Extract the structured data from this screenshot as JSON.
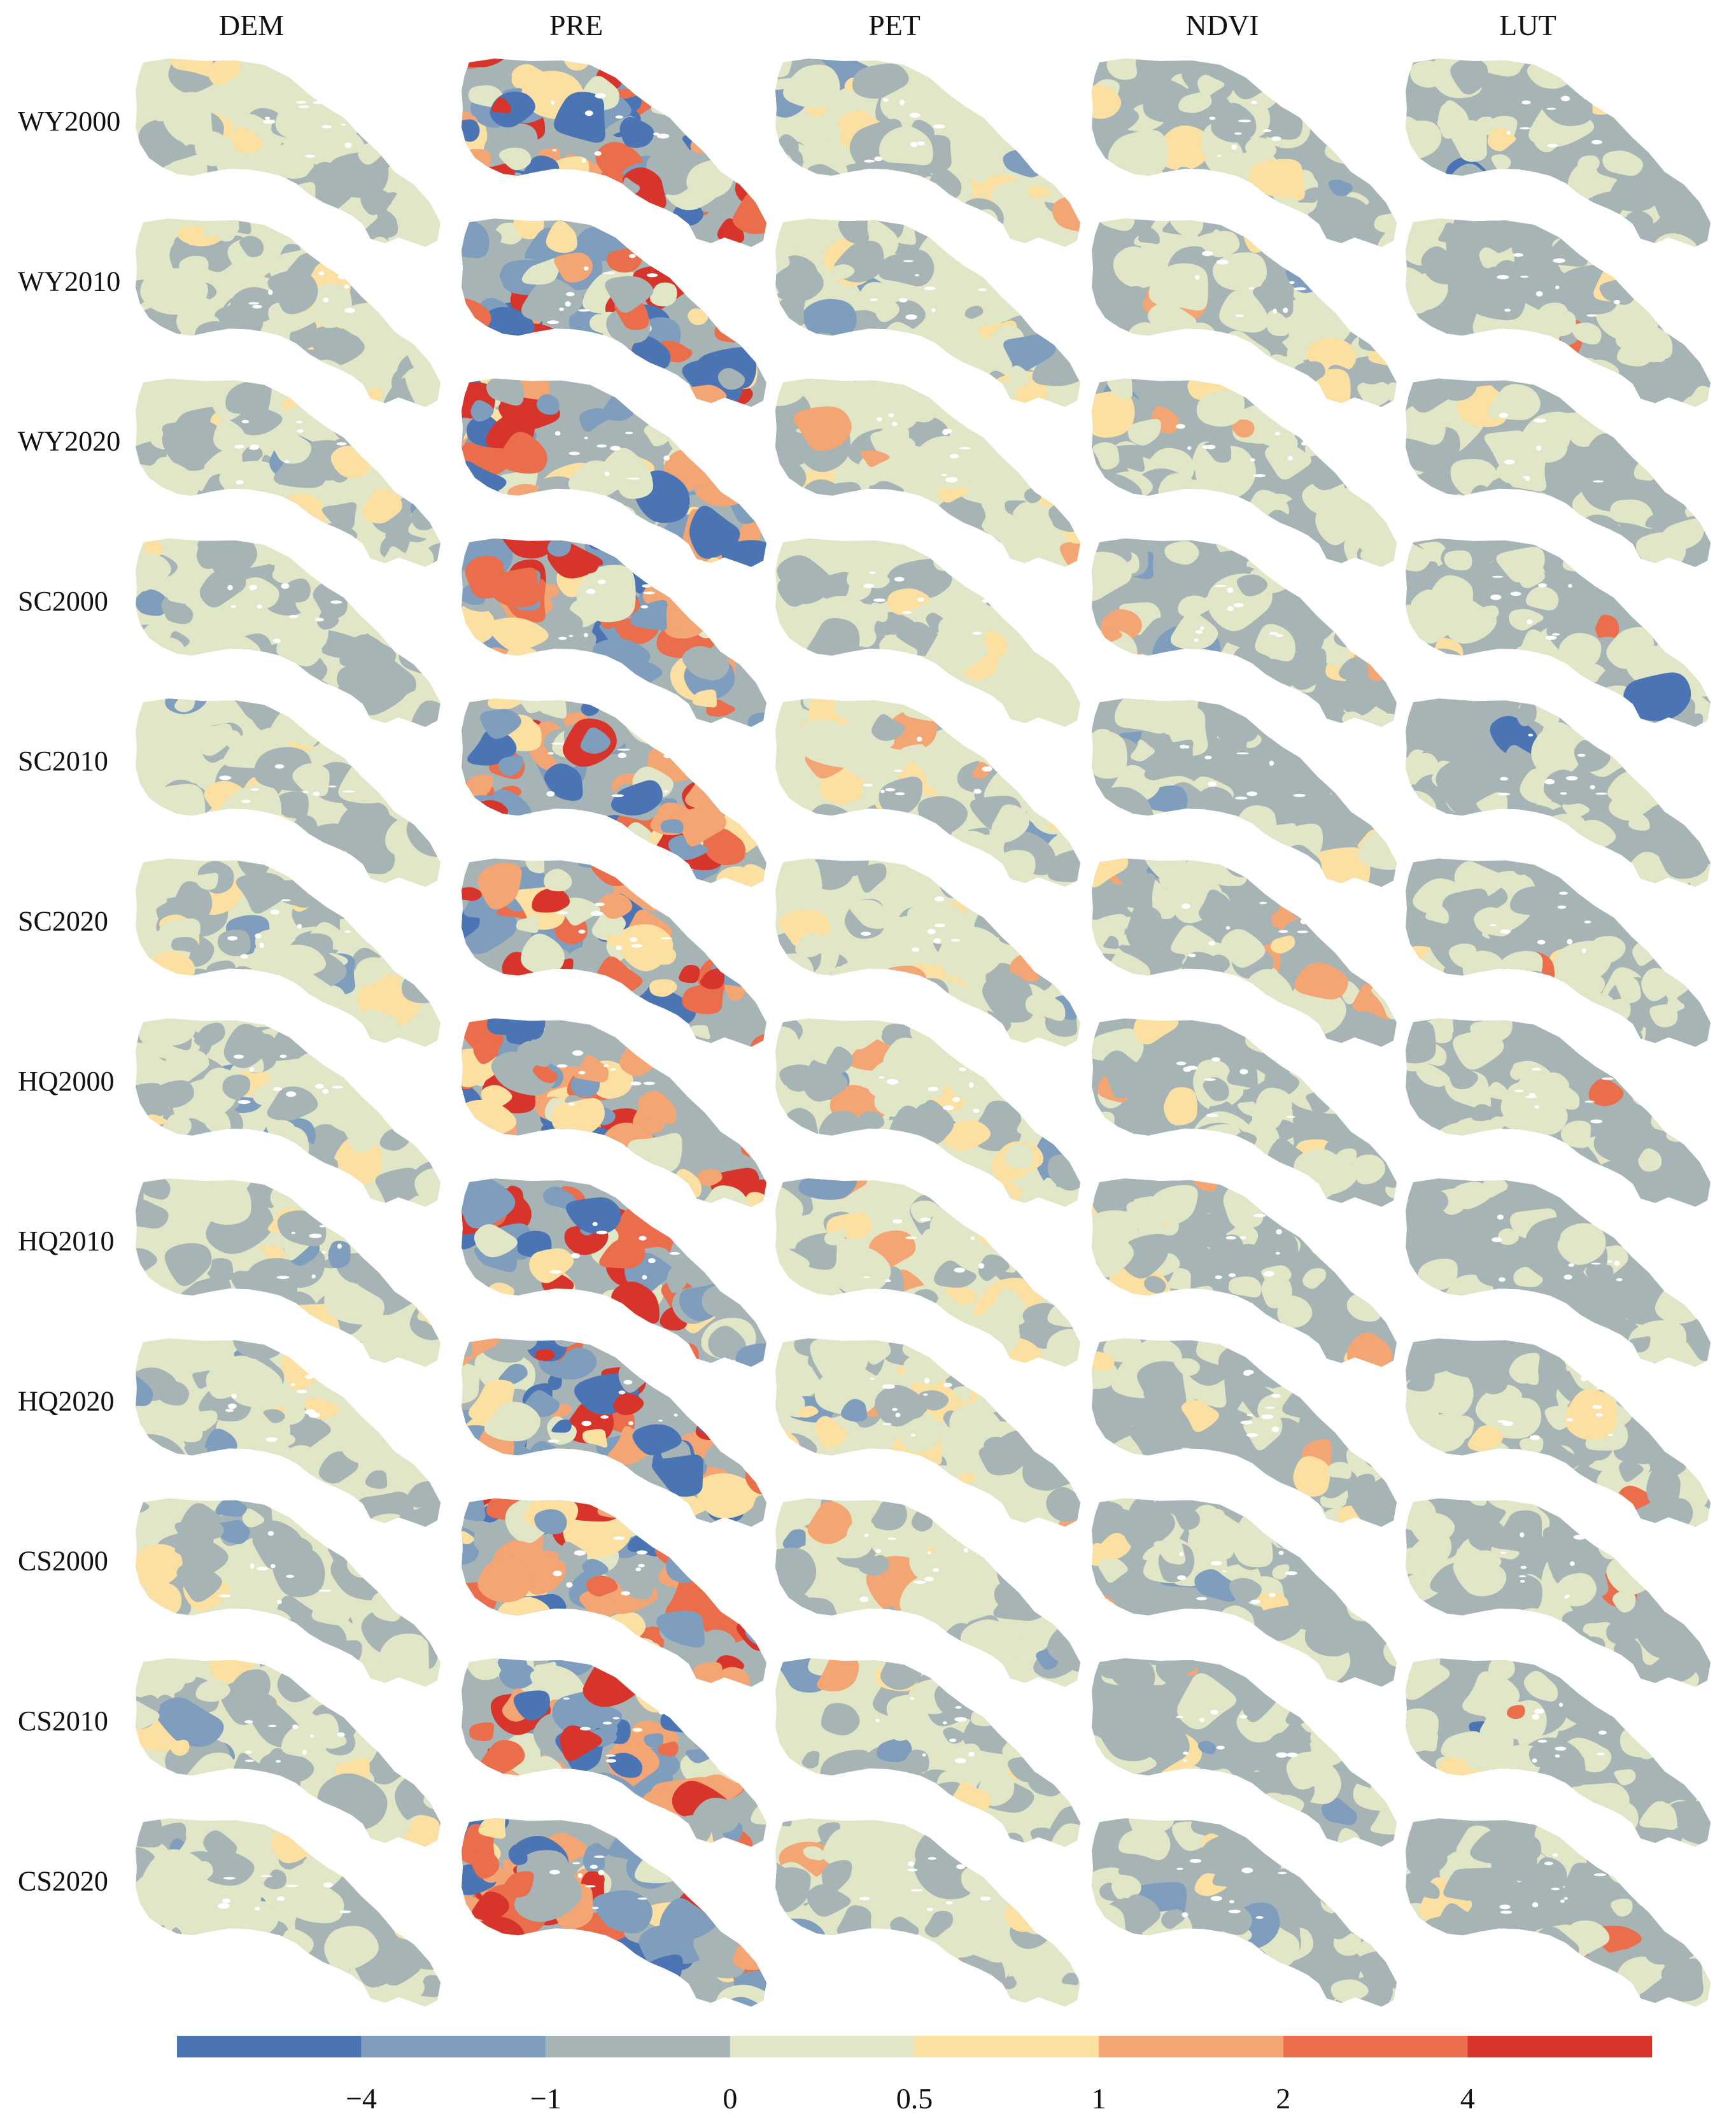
{
  "figure": {
    "columns": [
      "DEM",
      "PRE",
      "PET",
      "NDVI",
      "LUT"
    ],
    "rows": [
      "WY2000",
      "WY2010",
      "WY2020",
      "SC2000",
      "SC2010",
      "SC2020",
      "HQ2000",
      "HQ2010",
      "HQ2020",
      "CS2000",
      "CS2010",
      "CS2020"
    ],
    "colors": {
      "bin_colors": [
        "#4a74b4",
        "#7f9dbd",
        "#a6b4b6",
        "#e1e6c6",
        "#fbe0a2",
        "#f4a574",
        "#ea6e4b",
        "#d7342b"
      ],
      "hole": "#ffffff"
    },
    "map_style": {
      "DEM": {
        "weights": [
          0.0,
          0.03,
          0.42,
          0.47,
          0.08,
          0.0,
          0.0,
          0.0
        ]
      },
      "PRE": {
        "weights": [
          0.12,
          0.18,
          0.12,
          0.12,
          0.12,
          0.14,
          0.12,
          0.08
        ]
      },
      "PET": {
        "weights": [
          0.0,
          0.05,
          0.35,
          0.48,
          0.09,
          0.03,
          0.0,
          0.0
        ]
      },
      "NDVI": {
        "weights": [
          0.0,
          0.02,
          0.45,
          0.45,
          0.06,
          0.02,
          0.0,
          0.0
        ]
      },
      "LUT": {
        "weights": [
          0.01,
          0.0,
          0.5,
          0.46,
          0.02,
          0.0,
          0.01,
          0.0
        ]
      }
    },
    "colorbar": {
      "tick_labels": [
        "−4",
        "−1",
        "0",
        "0.5",
        "1",
        "2",
        "4"
      ]
    }
  }
}
